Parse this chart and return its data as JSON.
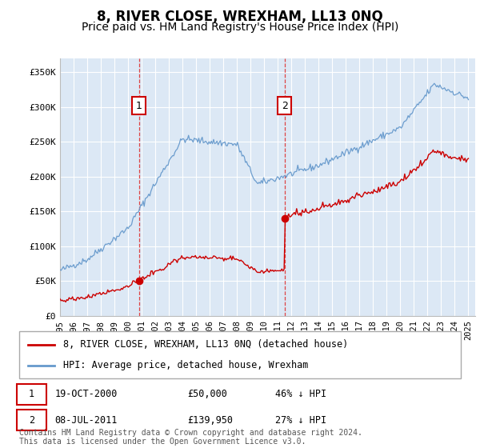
{
  "title": "8, RIVER CLOSE, WREXHAM, LL13 0NQ",
  "subtitle": "Price paid vs. HM Land Registry's House Price Index (HPI)",
  "title_fontsize": 12,
  "subtitle_fontsize": 10,
  "ylabel_ticks": [
    "£0",
    "£50K",
    "£100K",
    "£150K",
    "£200K",
    "£250K",
    "£300K",
    "£350K"
  ],
  "ytick_vals": [
    0,
    50000,
    100000,
    150000,
    200000,
    250000,
    300000,
    350000
  ],
  "ylim": [
    0,
    370000
  ],
  "xlim_start": 1995.0,
  "xlim_end": 2025.5,
  "sale1_x": 2000.8,
  "sale1_y": 50000,
  "sale1_label": "1",
  "sale2_x": 2011.5,
  "sale2_y": 139950,
  "sale2_label": "2",
  "sale_marker_color": "#cc0000",
  "dashed_line_color": "#dd4444",
  "annotation_box_color": "#cc0000",
  "red_line_color": "#cc0000",
  "blue_line_color": "#6699cc",
  "plot_bg_color": "#dce8f5",
  "legend_line1": "8, RIVER CLOSE, WREXHAM, LL13 0NQ (detached house)",
  "legend_line2": "HPI: Average price, detached house, Wrexham",
  "table_row1": [
    "1",
    "19-OCT-2000",
    "£50,000",
    "46% ↓ HPI"
  ],
  "table_row2": [
    "2",
    "08-JUL-2011",
    "£139,950",
    "27% ↓ HPI"
  ],
  "footer": "Contains HM Land Registry data © Crown copyright and database right 2024.\nThis data is licensed under the Open Government Licence v3.0.",
  "grid_color": "#ffffff"
}
